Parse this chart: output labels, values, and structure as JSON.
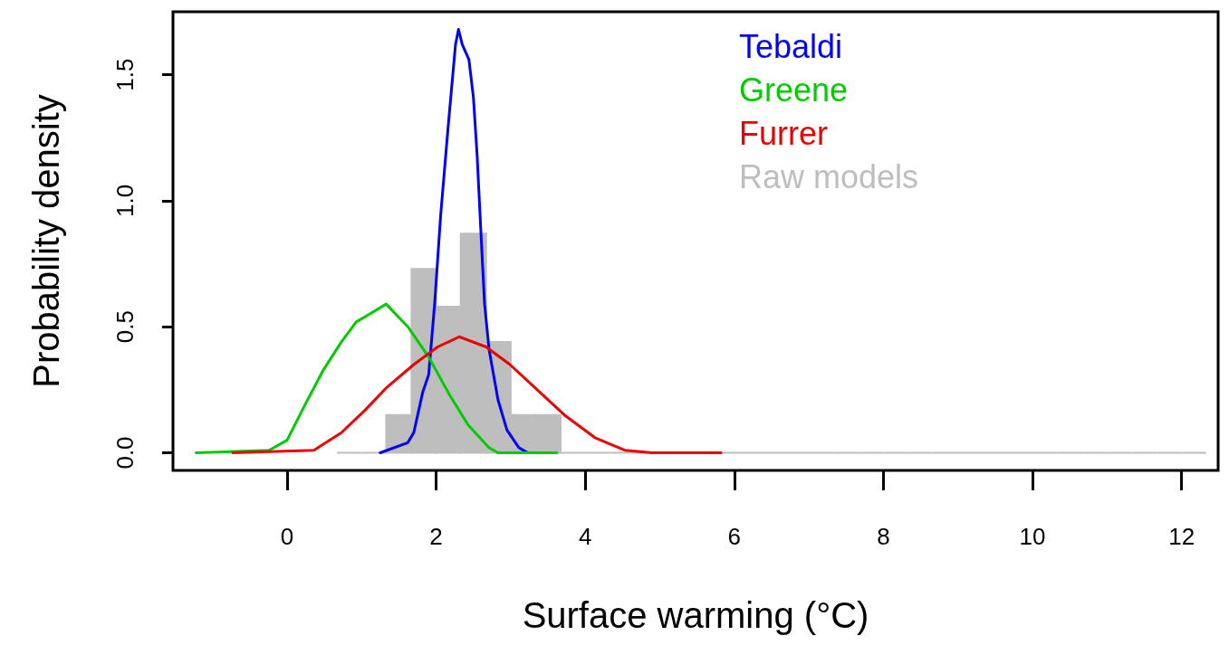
{
  "chart_data": {
    "type": "line",
    "xlabel": "Surface warming (°C)",
    "ylabel": "Probability density",
    "xlim": [
      -1.53,
      12.49
    ],
    "ylim": [
      -0.07,
      1.75
    ],
    "xticks": [
      0,
      2,
      4,
      6,
      8,
      10,
      12
    ],
    "yticks": [
      {
        "value": 0,
        "label": "0.0"
      },
      {
        "value": 0.5,
        "label": "0.5"
      },
      {
        "value": 1,
        "label": "1.0"
      },
      {
        "value": 1.5,
        "label": "1.5"
      }
    ],
    "legend": "top right",
    "marker": "none",
    "grid": false,
    "series": [
      {
        "name": "Tebaldi",
        "color": "#0000ff",
        "x": [
          1.25,
          1.62,
          1.7,
          1.82,
          1.9,
          1.98,
          2.06,
          2.16,
          2.26,
          2.3,
          2.35,
          2.44,
          2.5,
          2.55,
          2.61,
          2.65,
          2.71,
          2.83,
          2.95,
          3.11,
          3.23
        ],
        "values": [
          0,
          0.04,
          0.08,
          0.24,
          0.31,
          0.59,
          0.94,
          1.29,
          1.62,
          1.68,
          1.62,
          1.56,
          1.41,
          1.18,
          0.82,
          0.59,
          0.41,
          0.21,
          0.09,
          0.02,
          0
        ]
      },
      {
        "name": "Greene",
        "color": "#00cc00",
        "x": [
          -1.22,
          -0.24,
          0,
          0.24,
          0.49,
          0.73,
          0.93,
          1.05,
          1.33,
          1.62,
          1.9,
          2.18,
          2.43,
          2.71,
          2.83,
          3.62
        ],
        "values": [
          0,
          0.01,
          0.05,
          0.19,
          0.33,
          0.44,
          0.52,
          0.54,
          0.59,
          0.5,
          0.38,
          0.23,
          0.11,
          0.02,
          0,
          0
        ]
      },
      {
        "name": "Furrer",
        "color": "#ee0000",
        "x": [
          -0.73,
          0.36,
          0.73,
          1.05,
          1.34,
          1.7,
          2.02,
          2.31,
          2.67,
          2.99,
          3.32,
          3.72,
          4.13,
          4.53,
          4.9,
          5.82
        ],
        "values": [
          0,
          0.01,
          0.08,
          0.17,
          0.26,
          0.35,
          0.42,
          0.46,
          0.42,
          0.35,
          0.26,
          0.15,
          0.06,
          0.01,
          0,
          0
        ]
      },
      {
        "name": "Raw models",
        "type": "histogram",
        "color": "#bebebe",
        "bins": [
          0.67,
          1,
          1.33,
          1.67,
          2,
          2.33,
          2.67,
          3,
          3.33,
          3.67,
          4,
          4.33,
          4.67,
          5,
          5.33,
          5.67,
          6,
          6.33,
          6.67,
          7,
          7.33,
          7.67,
          8,
          8.33,
          8.67,
          9,
          9.33,
          9.67,
          10,
          10.33,
          10.67,
          11,
          11.33,
          11.67,
          12,
          12.33
        ],
        "values": [
          0,
          0,
          0.15,
          0.73,
          0.58,
          0.87,
          0.44,
          0.15,
          0.15,
          0,
          0,
          0,
          0,
          0,
          0,
          0,
          0,
          0,
          0,
          0,
          0,
          0,
          0,
          0,
          0,
          0,
          0,
          0,
          0,
          0,
          0,
          0,
          0,
          0,
          0
        ]
      }
    ]
  }
}
